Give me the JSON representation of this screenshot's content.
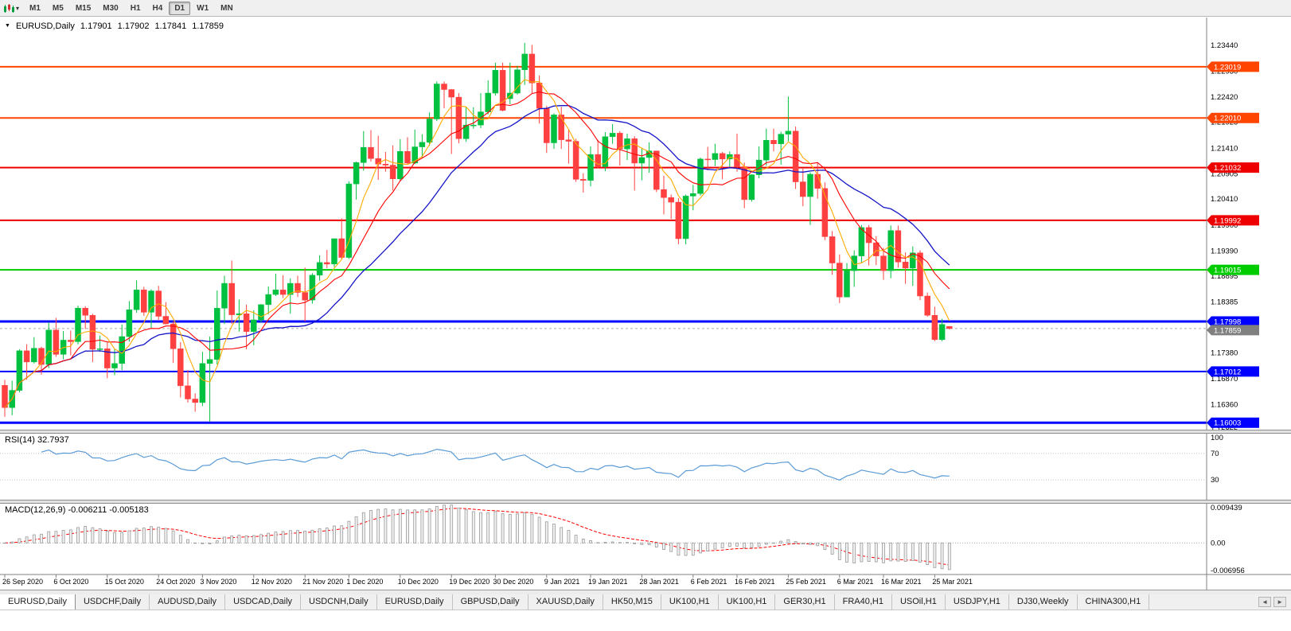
{
  "toolbar": {
    "menu_caret": "▾",
    "timeframes": [
      {
        "label": "M1",
        "active": false
      },
      {
        "label": "M5",
        "active": false
      },
      {
        "label": "M15",
        "active": false
      },
      {
        "label": "M30",
        "active": false
      },
      {
        "label": "H1",
        "active": false
      },
      {
        "label": "H4",
        "active": false
      },
      {
        "label": "D1",
        "active": true
      },
      {
        "label": "W1",
        "active": false
      },
      {
        "label": "MN",
        "active": false
      }
    ]
  },
  "chart": {
    "header": {
      "marker": "▼",
      "symbol": "EURUSD,Daily",
      "open": "1.17901",
      "high": "1.17902",
      "low": "1.17841",
      "close": "1.17859"
    },
    "price_axis": [
      "1.23440",
      "1.22930",
      "1.22420",
      "1.21925",
      "1.21410",
      "1.20905",
      "1.20410",
      "1.19900",
      "1.19390",
      "1.18895",
      "1.18385",
      "1.17380",
      "1.16870",
      "1.16360",
      "1.15865"
    ],
    "hlines": [
      {
        "label": "1.23019",
        "value": 1.23019,
        "color": "#ff4500",
        "width": 2
      },
      {
        "label": "1.22010",
        "value": 1.2201,
        "color": "#ff4500",
        "width": 2
      },
      {
        "label": "1.21032",
        "value": 1.21032,
        "color": "#ee0000",
        "width": 2
      },
      {
        "label": "1.19992",
        "value": 1.19992,
        "color": "#ee0000",
        "width": 2
      },
      {
        "label": "1.19015",
        "value": 1.19015,
        "color": "#00cc00",
        "width": 2
      },
      {
        "label": "1.17998",
        "value": 1.17998,
        "color": "#0000ff",
        "width": 3
      },
      {
        "label": "1.17012",
        "value": 1.17012,
        "color": "#0000ff",
        "width": 2
      },
      {
        "label": "1.16003",
        "value": 1.16003,
        "color": "#0000ff",
        "width": 3
      }
    ],
    "current_price": {
      "label": "1.17859",
      "value": 1.17859,
      "color": "#808080"
    },
    "date_labels": [
      {
        "text": "26 Sep 2020",
        "bar": 0
      },
      {
        "text": "6 Oct 2020",
        "bar": 7
      },
      {
        "text": "15 Oct 2020",
        "bar": 14
      },
      {
        "text": "24 Oct 2020",
        "bar": 21
      },
      {
        "text": "3 Nov 2020",
        "bar": 27
      },
      {
        "text": "12 Nov 2020",
        "bar": 34
      },
      {
        "text": "21 Nov 2020",
        "bar": 41
      },
      {
        "text": "1 Dec 2020",
        "bar": 47
      },
      {
        "text": "10 Dec 2020",
        "bar": 54
      },
      {
        "text": "19 Dec 2020",
        "bar": 61
      },
      {
        "text": "30 Dec 2020",
        "bar": 67
      },
      {
        "text": "9 Jan 2021",
        "bar": 74
      },
      {
        "text": "19 Jan 2021",
        "bar": 80
      },
      {
        "text": "28 Jan 2021",
        "bar": 87
      },
      {
        "text": "6 Feb 2021",
        "bar": 94
      },
      {
        "text": "16 Feb 2021",
        "bar": 100
      },
      {
        "text": "25 Feb 2021",
        "bar": 107
      },
      {
        "text": "6 Mar 2021",
        "bar": 114
      },
      {
        "text": "16 Mar 2021",
        "bar": 120
      },
      {
        "text": "25 Mar 2021",
        "bar": 127
      }
    ]
  },
  "chart_data": {
    "type": "candlestick",
    "symbol": "EURUSD",
    "timeframe": "Daily",
    "x_range": [
      "26 Sep 2020",
      "25 Mar 2021"
    ],
    "y_range": [
      1.15865,
      1.2344
    ],
    "bull_color": "#00c040",
    "bear_color": "#ff4040",
    "overlays": {
      "ma_fast": {
        "type": "sma",
        "period": 5,
        "color": "#ffaa00"
      },
      "ma_mid": {
        "type": "sma",
        "period": 10,
        "color": "#ff0000"
      },
      "ma_slow": {
        "type": "sma",
        "period": 20,
        "color": "#1515c8"
      }
    },
    "candles": [
      [
        1.1674,
        1.1685,
        1.1612,
        1.163
      ],
      [
        1.163,
        1.1683,
        1.1615,
        1.1664
      ],
      [
        1.1664,
        1.1745,
        1.166,
        1.1742
      ],
      [
        1.1742,
        1.1755,
        1.1685,
        1.172
      ],
      [
        1.172,
        1.1769,
        1.1717,
        1.1747
      ],
      [
        1.1747,
        1.175,
        1.1695,
        1.1715
      ],
      [
        1.1715,
        1.1798,
        1.1708,
        1.1783
      ],
      [
        1.1783,
        1.1807,
        1.173,
        1.1735
      ],
      [
        1.1735,
        1.1781,
        1.1725,
        1.1763
      ],
      [
        1.1763,
        1.1782,
        1.1733,
        1.176
      ],
      [
        1.176,
        1.1831,
        1.1755,
        1.1826
      ],
      [
        1.1826,
        1.183,
        1.1785,
        1.1812
      ],
      [
        1.1812,
        1.1815,
        1.172,
        1.1745
      ],
      [
        1.1745,
        1.1772,
        1.174,
        1.1746
      ],
      [
        1.1746,
        1.1758,
        1.1688,
        1.1708
      ],
      [
        1.1708,
        1.1746,
        1.1694,
        1.1717
      ],
      [
        1.1717,
        1.1794,
        1.1704,
        1.177
      ],
      [
        1.177,
        1.184,
        1.176,
        1.1823
      ],
      [
        1.1823,
        1.1881,
        1.1817,
        1.1862
      ],
      [
        1.1862,
        1.1868,
        1.1811,
        1.1818
      ],
      [
        1.1818,
        1.1863,
        1.1786,
        1.186
      ],
      [
        1.186,
        1.187,
        1.1803,
        1.181
      ],
      [
        1.181,
        1.1838,
        1.1794,
        1.1795
      ],
      [
        1.1795,
        1.18,
        1.1718,
        1.1746
      ],
      [
        1.1746,
        1.1759,
        1.165,
        1.1673
      ],
      [
        1.1673,
        1.1704,
        1.164,
        1.1647
      ],
      [
        1.1647,
        1.1658,
        1.1622,
        1.164
      ],
      [
        1.164,
        1.174,
        1.1633,
        1.1717
      ],
      [
        1.1717,
        1.177,
        1.1602,
        1.1725
      ],
      [
        1.1725,
        1.1861,
        1.1715,
        1.1826
      ],
      [
        1.1826,
        1.189,
        1.1795,
        1.1875
      ],
      [
        1.1875,
        1.192,
        1.1795,
        1.1813
      ],
      [
        1.1813,
        1.1843,
        1.178,
        1.1815
      ],
      [
        1.1815,
        1.1833,
        1.1745,
        1.178
      ],
      [
        1.178,
        1.1822,
        1.1753,
        1.1803
      ],
      [
        1.1803,
        1.1834,
        1.1798,
        1.1833
      ],
      [
        1.1833,
        1.1869,
        1.1814,
        1.1853
      ],
      [
        1.1853,
        1.1894,
        1.185,
        1.1862
      ],
      [
        1.1862,
        1.1891,
        1.1846,
        1.1853
      ],
      [
        1.1853,
        1.1885,
        1.1815,
        1.1875
      ],
      [
        1.1875,
        1.189,
        1.1848,
        1.1857
      ],
      [
        1.1857,
        1.1906,
        1.18,
        1.1842
      ],
      [
        1.1842,
        1.1895,
        1.1835,
        1.1891
      ],
      [
        1.1891,
        1.193,
        1.188,
        1.1916
      ],
      [
        1.1916,
        1.1941,
        1.1905,
        1.1913
      ],
      [
        1.1913,
        1.1963,
        1.1907,
        1.1963
      ],
      [
        1.1963,
        1.2003,
        1.1923,
        1.1926
      ],
      [
        1.1926,
        1.2076,
        1.1923,
        1.2071
      ],
      [
        1.2071,
        1.2115,
        1.204,
        1.2113
      ],
      [
        1.2113,
        1.2175,
        1.2097,
        1.2143
      ],
      [
        1.2143,
        1.2177,
        1.2115,
        1.2121
      ],
      [
        1.2121,
        1.2166,
        1.2079,
        1.211
      ],
      [
        1.211,
        1.2134,
        1.2095,
        1.2108
      ],
      [
        1.2108,
        1.2147,
        1.2058,
        1.2081
      ],
      [
        1.2081,
        1.2159,
        1.2076,
        1.2135
      ],
      [
        1.2135,
        1.2163,
        1.211,
        1.2112
      ],
      [
        1.2112,
        1.2178,
        1.211,
        1.2144
      ],
      [
        1.2144,
        1.2169,
        1.2123,
        1.2153
      ],
      [
        1.2153,
        1.2212,
        1.2146,
        1.2199
      ],
      [
        1.2199,
        1.2273,
        1.2195,
        1.2268
      ],
      [
        1.2268,
        1.2273,
        1.222,
        1.2257
      ],
      [
        1.2257,
        1.2258,
        1.213,
        1.2242
      ],
      [
        1.2242,
        1.225,
        1.2151,
        1.216
      ],
      [
        1.216,
        1.2222,
        1.2154,
        1.2187
      ],
      [
        1.2187,
        1.2222,
        1.218,
        1.2187
      ],
      [
        1.2187,
        1.225,
        1.2181,
        1.2213
      ],
      [
        1.2213,
        1.2275,
        1.2208,
        1.225
      ],
      [
        1.225,
        1.231,
        1.2245,
        1.2295
      ],
      [
        1.2295,
        1.231,
        1.2214,
        1.2216
      ],
      [
        1.2239,
        1.231,
        1.2228,
        1.225
      ],
      [
        1.225,
        1.2304,
        1.2247,
        1.2296
      ],
      [
        1.2296,
        1.2349,
        1.2266,
        1.2327
      ],
      [
        1.2327,
        1.2345,
        1.225,
        1.227
      ],
      [
        1.227,
        1.2285,
        1.219,
        1.222
      ],
      [
        1.222,
        1.2225,
        1.2132,
        1.2152
      ],
      [
        1.2152,
        1.221,
        1.214,
        1.2207
      ],
      [
        1.2207,
        1.2223,
        1.214,
        1.2158
      ],
      [
        1.2158,
        1.2178,
        1.2111,
        1.2155
      ],
      [
        1.2155,
        1.216,
        1.2075,
        1.208
      ],
      [
        1.208,
        1.2092,
        1.2054,
        1.2078
      ],
      [
        1.2078,
        1.2145,
        1.2066,
        1.2129
      ],
      [
        1.2129,
        1.2158,
        1.2102,
        1.2105
      ],
      [
        1.2105,
        1.2173,
        1.2096,
        1.2164
      ],
      [
        1.2164,
        1.2189,
        1.215,
        1.2171
      ],
      [
        1.2171,
        1.2175,
        1.2107,
        1.214
      ],
      [
        1.214,
        1.217,
        1.2118,
        1.216
      ],
      [
        1.216,
        1.2165,
        1.2058,
        1.2112
      ],
      [
        1.2112,
        1.2142,
        1.2078,
        1.2123
      ],
      [
        1.2123,
        1.2153,
        1.2093,
        1.2136
      ],
      [
        1.2136,
        1.2136,
        1.2055,
        1.206
      ],
      [
        1.206,
        1.2087,
        1.2011,
        1.2044
      ],
      [
        1.2044,
        1.205,
        1.2002,
        1.2035
      ],
      [
        1.2035,
        1.2043,
        1.1952,
        1.1963
      ],
      [
        1.1963,
        1.205,
        1.1952,
        1.2047
      ],
      [
        1.2047,
        1.2069,
        1.2019,
        1.2052
      ],
      [
        1.2052,
        1.2123,
        1.2048,
        1.212
      ],
      [
        1.212,
        1.2144,
        1.2098,
        1.2119
      ],
      [
        1.2119,
        1.215,
        1.2106,
        1.2131
      ],
      [
        1.2131,
        1.2134,
        1.208,
        1.212
      ],
      [
        1.212,
        1.2135,
        1.2105,
        1.2129
      ],
      [
        1.2129,
        1.217,
        1.2095,
        1.2105
      ],
      [
        1.2105,
        1.2113,
        1.2023,
        1.204
      ],
      [
        1.204,
        1.209,
        1.2036,
        1.2089
      ],
      [
        1.2089,
        1.2145,
        1.2082,
        1.2118
      ],
      [
        1.2118,
        1.218,
        1.2107,
        1.2157
      ],
      [
        1.2157,
        1.218,
        1.2135,
        1.215
      ],
      [
        1.215,
        1.2174,
        1.2109,
        1.2169
      ],
      [
        1.2169,
        1.2243,
        1.2155,
        1.2175
      ],
      [
        1.2175,
        1.2184,
        1.2061,
        1.2075
      ],
      [
        1.2075,
        1.2101,
        1.2027,
        1.2046
      ],
      [
        1.2046,
        1.2094,
        1.199,
        1.209
      ],
      [
        1.209,
        1.2113,
        1.2042,
        1.2062
      ],
      [
        1.2062,
        1.2074,
        1.196,
        1.1967
      ],
      [
        1.1967,
        1.1978,
        1.1892,
        1.1915
      ],
      [
        1.1915,
        1.1932,
        1.1836,
        1.1848
      ],
      [
        1.1848,
        1.1915,
        1.1848,
        1.19
      ],
      [
        1.19,
        1.194,
        1.1868,
        1.1929
      ],
      [
        1.1929,
        1.199,
        1.1915,
        1.1985
      ],
      [
        1.1985,
        1.199,
        1.191,
        1.1955
      ],
      [
        1.1955,
        1.1968,
        1.1911,
        1.1929
      ],
      [
        1.1929,
        1.1945,
        1.1882,
        1.19
      ],
      [
        1.19,
        1.1989,
        1.1885,
        1.1979
      ],
      [
        1.1979,
        1.1989,
        1.1906,
        1.1917
      ],
      [
        1.1917,
        1.1936,
        1.1874,
        1.1905
      ],
      [
        1.1905,
        1.1948,
        1.187,
        1.1935
      ],
      [
        1.1935,
        1.194,
        1.1842,
        1.185
      ],
      [
        1.185,
        1.1857,
        1.1809,
        1.1812
      ],
      [
        1.1812,
        1.1829,
        1.1761,
        1.1764
      ],
      [
        1.1764,
        1.1805,
        1.1761,
        1.1794
      ],
      [
        1.17901,
        1.17902,
        1.17841,
        1.17859
      ]
    ]
  },
  "rsi": {
    "header": "RSI(14) 32.7937",
    "name": "RSI",
    "period": 14,
    "value": 32.7937,
    "axis": [
      "100",
      "70",
      "30"
    ],
    "levels": [
      70,
      30
    ],
    "line_color": "#5b9bd5"
  },
  "macd": {
    "header": "MACD(12,26,9) -0.006211 -0.005183",
    "fast": 12,
    "slow": 26,
    "signal": 9,
    "macd_value": -0.006211,
    "signal_value": -0.005183,
    "axis_top": "0.009439",
    "axis_zero": "0.00",
    "axis_bottom": "-0.006956",
    "signal_color": "#ff0000",
    "hist_stroke": "#9a9a9a"
  },
  "tabs": {
    "scroll_left": "◄",
    "scroll_right": "►",
    "items": [
      {
        "label": "EURUSD,Daily",
        "active": true
      },
      {
        "label": "USDCHF,Daily",
        "active": false
      },
      {
        "label": "AUDUSD,Daily",
        "active": false
      },
      {
        "label": "USDCAD,Daily",
        "active": false
      },
      {
        "label": "USDCNH,Daily",
        "active": false
      },
      {
        "label": "EURUSD,Daily",
        "active": false
      },
      {
        "label": "GBPUSD,Daily",
        "active": false
      },
      {
        "label": "XAUUSD,Daily",
        "active": false
      },
      {
        "label": "HK50,M15",
        "active": false
      },
      {
        "label": "UK100,H1",
        "active": false
      },
      {
        "label": "UK100,H1",
        "active": false
      },
      {
        "label": "GER30,H1",
        "active": false
      },
      {
        "label": "FRA40,H1",
        "active": false
      },
      {
        "label": "USOil,H1",
        "active": false
      },
      {
        "label": "USDJPY,H1",
        "active": false
      },
      {
        "label": "DJ30,Weekly",
        "active": false
      },
      {
        "label": "CHINA300,H1",
        "active": false
      }
    ]
  }
}
